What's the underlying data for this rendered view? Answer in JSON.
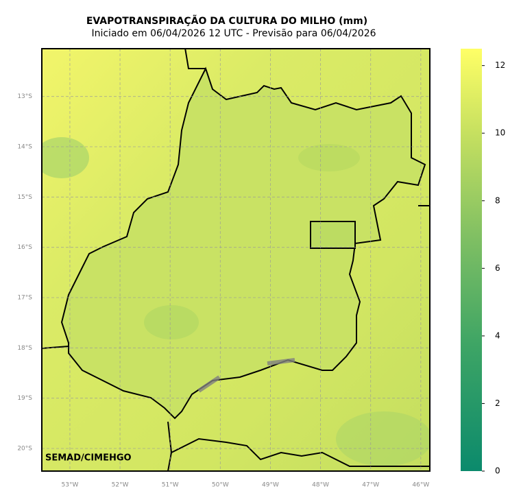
{
  "title": "EVAPOTRANSPIRAÇÃO DA CULTURA DO MILHO (mm)",
  "subtitle": "Iniciado em 06/04/2026 12 UTC - Previsão para 06/04/2026",
  "credit": "SEMAD/CIMEHGO",
  "map": {
    "xlim": [
      -53.56,
      -45.82
    ],
    "ylim": [
      -20.45,
      -12.05
    ],
    "xticks": [
      {
        "value": -53,
        "label": "53°W"
      },
      {
        "value": -52,
        "label": "52°W"
      },
      {
        "value": -51,
        "label": "51°W"
      },
      {
        "value": -50,
        "label": "50°W"
      },
      {
        "value": -49,
        "label": "49°W"
      },
      {
        "value": -48,
        "label": "48°W"
      },
      {
        "value": -47,
        "label": "47°W"
      },
      {
        "value": -46,
        "label": "46°W"
      }
    ],
    "yticks": [
      {
        "value": -13,
        "label": "13°S"
      },
      {
        "value": -14,
        "label": "14°S"
      },
      {
        "value": -15,
        "label": "15°S"
      },
      {
        "value": -16,
        "label": "16°S"
      },
      {
        "value": -17,
        "label": "17°S"
      },
      {
        "value": -18,
        "label": "18°S"
      },
      {
        "value": -19,
        "label": "19°S"
      },
      {
        "value": -20,
        "label": "20°S"
      }
    ]
  },
  "colorbar": {
    "lim": [
      0,
      12.5
    ],
    "ticks": [
      0,
      2,
      4,
      6,
      8,
      10,
      12
    ]
  }
}
